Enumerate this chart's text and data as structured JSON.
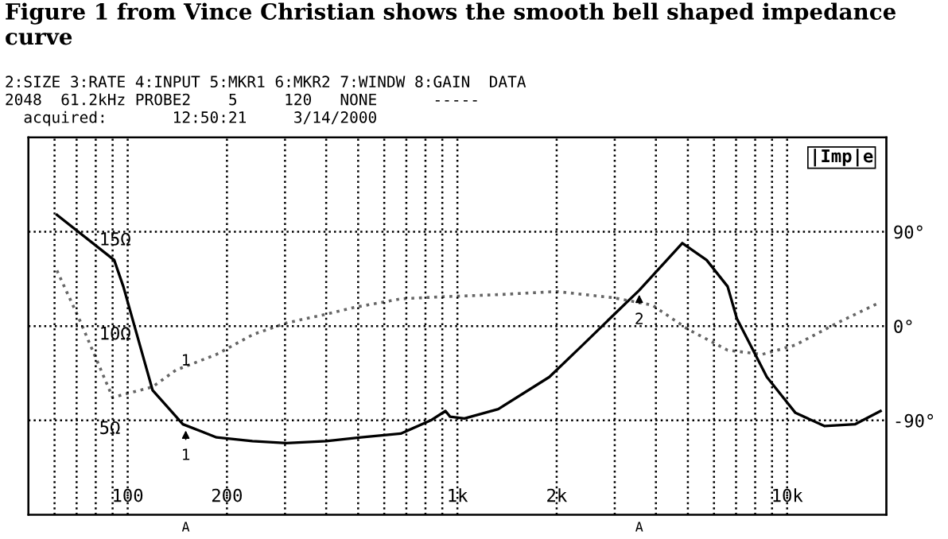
{
  "chart_data": {
    "type": "line",
    "title": "Figure 1 from Vince Christian shows the smooth bell shaped impedance curve",
    "annotations": [
      "2:SIZE 3:RATE 4:INPUT 5:MKR1 6:MKR2 7:WINDW 8:GAIN  DATA",
      "2048  61.2kHz PROBE2    5     120   NONE      -----",
      "  acquired:       12:50:21     3/14/2000",
      "1",
      "A",
      "A",
      {
        "text": "1",
        "x": 150,
        "y": 4.7
      },
      {
        "text": "2",
        "x": 3560,
        "y": 11.9
      }
    ],
    "series": [
      {
        "name": "|Imp|e",
        "color": "#000000",
        "line_style": "solid",
        "x": [
          61,
          91,
          97,
          119,
          147,
          186,
          239,
          303,
          400,
          510,
          673,
          830,
          920,
          950,
          1050,
          1330,
          1900,
          2400,
          2980,
          3560,
          4810,
          5700,
          6600,
          7040,
          8680,
          10600,
          13000,
          16100,
          19200
        ],
        "values": [
          15.9,
          13.5,
          12.1,
          6.6,
          4.8,
          4.1,
          3.9,
          3.8,
          3.9,
          4.1,
          4.3,
          5.0,
          5.5,
          5.2,
          5.1,
          5.6,
          7.3,
          9.0,
          10.6,
          11.9,
          14.4,
          13.5,
          12.1,
          10.4,
          7.3,
          5.4,
          4.7,
          4.8,
          5.5
        ]
      },
      {
        "color": "#666666",
        "line_style": "dotted",
        "axis": "y2",
        "x": [
          61,
          71,
          90,
          119,
          140,
          186,
          240,
          303,
          395,
          490,
          673,
          900,
          1330,
          2000,
          2980,
          3900,
          5000,
          6600,
          8400,
          10600,
          14200,
          19200
        ],
        "values": [
          53,
          8,
          -68,
          -58,
          -42,
          -27,
          -8,
          3,
          11,
          18,
          26,
          28,
          30,
          33,
          27,
          20,
          -3,
          -23,
          -27,
          -18,
          3,
          23
        ]
      }
    ],
    "xlim": [
      50,
      20000
    ],
    "xticks": [
      {
        "value": 60,
        "label": null
      },
      {
        "value": 70,
        "label": null
      },
      {
        "value": 80,
        "label": null
      },
      {
        "value": 90,
        "label": null
      },
      100,
      200,
      {
        "value": 300,
        "label": null
      },
      {
        "value": 400,
        "label": null
      },
      {
        "value": 500,
        "label": null
      },
      {
        "value": 600,
        "label": null
      },
      {
        "value": 700,
        "label": null
      },
      {
        "value": 800,
        "label": null
      },
      {
        "value": 900,
        "label": null
      },
      {
        "value": 1000,
        "label": "1k"
      },
      {
        "value": 2000,
        "label": "2k"
      },
      {
        "value": 3000,
        "label": null
      },
      {
        "value": 4000,
        "label": null
      },
      {
        "value": 5000,
        "label": null
      },
      {
        "value": 6000,
        "label": null
      },
      {
        "value": 7000,
        "label": null
      },
      {
        "value": 8000,
        "label": null
      },
      {
        "value": 9000,
        "label": null
      },
      {
        "value": 10000,
        "label": "10k"
      }
    ],
    "ylim": [
      0,
      20
    ],
    "yticks": [
      {
        "value": 5,
        "label": "5Ω"
      },
      {
        "value": 10,
        "label": "10Ω"
      },
      {
        "value": 15,
        "label": "15Ω"
      }
    ],
    "y2lim": [
      -180,
      180
    ],
    "y2ticks": [
      {
        "value": -90,
        "label": "-90°"
      },
      {
        "value": 0,
        "label": "0°"
      },
      {
        "value": 90,
        "label": "90°"
      }
    ],
    "log": "x",
    "grid": true,
    "legend": false
  }
}
